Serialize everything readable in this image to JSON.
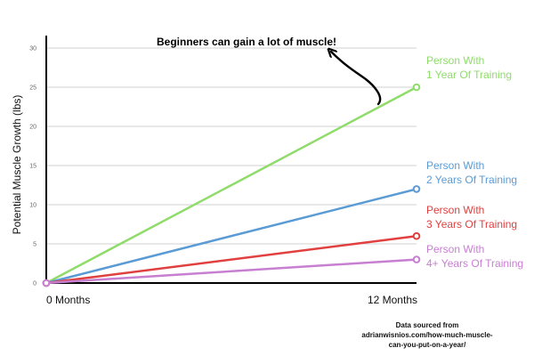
{
  "chart_data": {
    "type": "line",
    "x": [
      0,
      12
    ],
    "xticks": [
      "0 Months",
      "12 Months"
    ],
    "ylabel": "Potential Muscle Growth (lbs)",
    "ylim": [
      0,
      30
    ],
    "yticks": [
      "0",
      "5",
      "10",
      "15",
      "20",
      "25",
      "30"
    ],
    "grid": true,
    "series": [
      {
        "name_lines": [
          "Person With",
          "1 Year Of Training"
        ],
        "values": [
          0,
          25
        ],
        "color": "#8fdc6a"
      },
      {
        "name_lines": [
          "Person With",
          "2 Years Of Training"
        ],
        "values": [
          0,
          12
        ],
        "color": "#5b9bd5"
      },
      {
        "name_lines": [
          "Person With",
          "3 Years Of Training"
        ],
        "values": [
          0,
          6
        ],
        "color": "#e0403f"
      },
      {
        "name_lines": [
          "Person With",
          "4+ Years Of Training"
        ],
        "values": [
          0,
          3
        ],
        "color": "#c77fd1"
      }
    ],
    "annotation": "Beginners can gain a lot of muscle!",
    "source_lines": [
      "Data sourced from",
      "adrianwisnios.com/how-much-muscle-",
      "can-you-put-on-a-year/"
    ]
  }
}
